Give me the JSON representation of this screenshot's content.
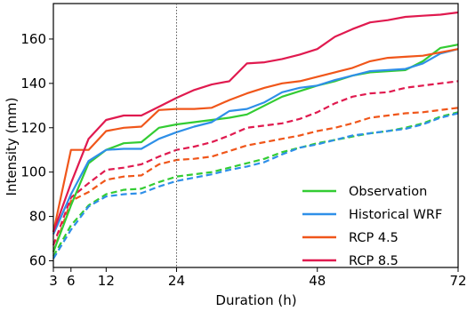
{
  "chart_data": {
    "type": "line",
    "title": "",
    "xlabel": "Duration (h)",
    "ylabel": "Intensity (mm)",
    "xlim": [
      3,
      72
    ],
    "ylim": [
      57,
      176
    ],
    "x_ticks": [
      3,
      6,
      12,
      24,
      48,
      72
    ],
    "y_ticks": [
      60,
      80,
      100,
      120,
      140,
      160
    ],
    "vertical_reference_line": {
      "x": 24,
      "style": "dotted"
    },
    "grid": false,
    "legend_position": "lower-right",
    "series": [
      {
        "name": "Observation",
        "color": "#33cc33",
        "style": "solid",
        "x": [
          3,
          6,
          9,
          12,
          15,
          18,
          21,
          24,
          27,
          30,
          33,
          36,
          39,
          42,
          45,
          48,
          51,
          54,
          57,
          60,
          63,
          66,
          69,
          72
        ],
        "y": [
          64,
          85,
          104,
          110,
          113,
          113.5,
          120,
          121.5,
          122.5,
          123.5,
          124.5,
          126,
          130,
          134,
          136.5,
          139,
          141,
          143.5,
          145,
          145.5,
          146,
          150,
          156,
          157.5
        ]
      },
      {
        "name": "",
        "color": "#33cc33",
        "style": "dashed",
        "x": [
          3,
          6,
          9,
          12,
          15,
          18,
          21,
          24,
          27,
          30,
          33,
          36,
          39,
          42,
          45,
          48,
          51,
          54,
          57,
          60,
          63,
          66,
          69,
          72
        ],
        "y": [
          62,
          76,
          85,
          90,
          92,
          92.5,
          95.5,
          98,
          99,
          100,
          102,
          104,
          106,
          109,
          111,
          113,
          114.5,
          116,
          117.5,
          118.5,
          120,
          122,
          125,
          127
        ]
      },
      {
        "name": "Historical WRF",
        "color": "#2e8fe8",
        "style": "solid",
        "x": [
          3,
          6,
          9,
          12,
          15,
          18,
          21,
          24,
          27,
          30,
          33,
          36,
          39,
          42,
          45,
          48,
          51,
          54,
          57,
          60,
          63,
          66,
          69,
          72
        ],
        "y": [
          72,
          90,
          105,
          110,
          110.5,
          110.5,
          115,
          118,
          120.5,
          122.5,
          127.5,
          128.5,
          131.5,
          136,
          138,
          139,
          141.5,
          143.5,
          145.5,
          146,
          146.5,
          149,
          153.5,
          155.5
        ]
      },
      {
        "name": "",
        "color": "#2e8fe8",
        "style": "dashed",
        "x": [
          3,
          6,
          9,
          12,
          15,
          18,
          21,
          24,
          27,
          30,
          33,
          36,
          39,
          42,
          45,
          48,
          51,
          54,
          57,
          60,
          63,
          66,
          69,
          72
        ],
        "y": [
          61,
          74,
          84.5,
          89,
          90,
          90.5,
          93.5,
          96,
          97.5,
          99,
          101,
          102.5,
          104.5,
          108,
          111,
          112.5,
          114.5,
          116.5,
          117.5,
          118.5,
          119.5,
          121.5,
          124.5,
          126.5
        ]
      },
      {
        "name": "RCP 4.5",
        "color": "#f0561a",
        "style": "solid",
        "x": [
          3,
          6,
          9,
          12,
          15,
          18,
          21,
          24,
          27,
          30,
          33,
          36,
          39,
          42,
          45,
          48,
          51,
          54,
          57,
          60,
          63,
          66,
          69,
          72
        ],
        "y": [
          73,
          110,
          110,
          118.5,
          120,
          120.5,
          128,
          128.5,
          128.5,
          129,
          132.5,
          135.5,
          138,
          140,
          141,
          143,
          145,
          147,
          150,
          151.5,
          152,
          152.5,
          154,
          155.5
        ]
      },
      {
        "name": "",
        "color": "#f0561a",
        "style": "dashed",
        "x": [
          3,
          6,
          9,
          12,
          15,
          18,
          21,
          24,
          27,
          30,
          33,
          36,
          39,
          42,
          45,
          48,
          51,
          54,
          57,
          60,
          63,
          66,
          69,
          72
        ],
        "y": [
          64,
          87,
          91,
          96.5,
          98,
          98.5,
          103.5,
          105.5,
          106,
          107,
          109.5,
          112,
          113.5,
          115,
          116.5,
          118.5,
          120,
          122,
          124.5,
          125.5,
          126.5,
          127,
          128,
          129
        ]
      },
      {
        "name": "RCP 8.5",
        "color": "#e01a4f",
        "style": "solid",
        "x": [
          3,
          6,
          9,
          12,
          15,
          18,
          21,
          24,
          27,
          30,
          33,
          36,
          39,
          42,
          45,
          48,
          51,
          54,
          57,
          60,
          63,
          66,
          69,
          72
        ],
        "y": [
          73,
          95,
          115,
          123.5,
          125.5,
          125.5,
          129.5,
          133.5,
          137,
          139.5,
          141,
          149,
          149.5,
          151,
          153,
          155.5,
          161,
          164.5,
          167.5,
          168.5,
          170,
          170.5,
          171,
          172
        ]
      },
      {
        "name": "",
        "color": "#e01a4f",
        "style": "dashed",
        "x": [
          3,
          6,
          9,
          12,
          15,
          18,
          21,
          24,
          27,
          30,
          33,
          36,
          39,
          42,
          45,
          48,
          51,
          54,
          57,
          60,
          63,
          66,
          69,
          72
        ],
        "y": [
          67,
          88.5,
          95,
          101,
          102,
          103.5,
          107,
          110,
          111.5,
          113.5,
          116.5,
          120,
          121,
          122,
          124,
          127,
          131,
          134,
          135.5,
          136,
          138,
          139,
          140,
          141
        ]
      }
    ]
  }
}
